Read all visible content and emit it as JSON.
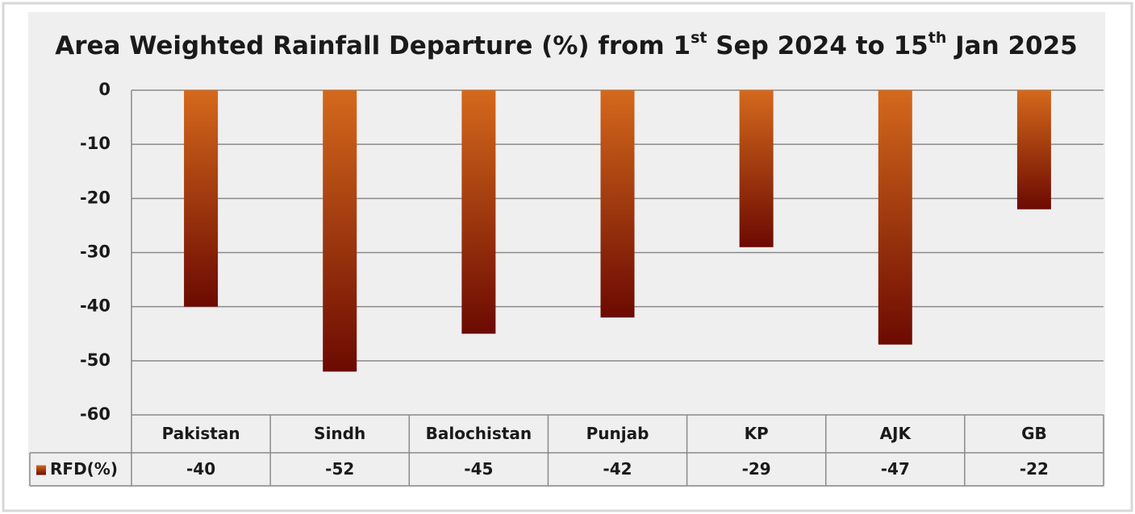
{
  "chart_data": {
    "type": "bar",
    "title_parts": [
      {
        "text": "Area Weighted Rainfall Departure (%) from 1"
      },
      {
        "text": "st",
        "sup": true
      },
      {
        "text": " Sep 2024 to 15"
      },
      {
        "text": "th",
        "sup": true
      },
      {
        "text": " Jan 2025"
      }
    ],
    "categories": [
      "Pakistan",
      "Sindh",
      "Balochistan",
      "Punjab",
      "KP",
      "AJK",
      "GB"
    ],
    "series": [
      {
        "name": "RFD(%)",
        "gradient": [
          "#d4691c",
          "#6c0a02"
        ],
        "values": [
          -40,
          -52,
          -45,
          -42,
          -29,
          -47,
          -22
        ]
      }
    ],
    "ylim": [
      -60,
      0
    ],
    "yticks": [
      0,
      -10,
      -20,
      -30,
      -40,
      -50,
      -60
    ],
    "grid": true,
    "data_table": true
  }
}
